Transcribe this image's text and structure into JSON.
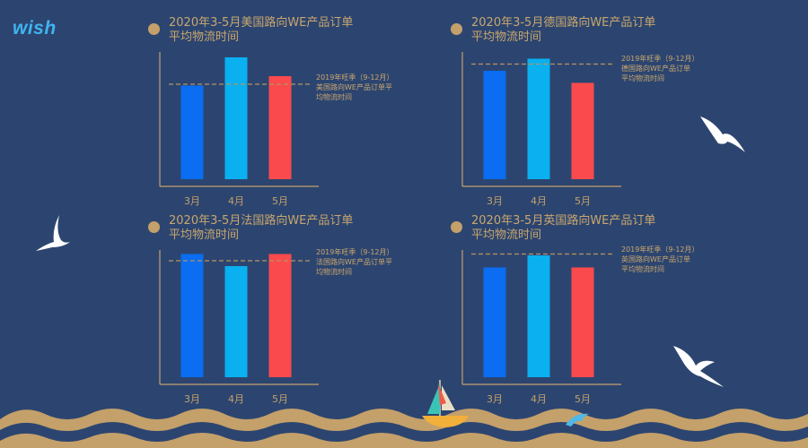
{
  "logo": {
    "text": "wish"
  },
  "colors": {
    "background": "#2c4570",
    "gold": "#c4a06a",
    "bar1": "#0a6df2",
    "bar2": "#0ab0ef",
    "bar3": "#fa4a4d"
  },
  "chart_data": [
    {
      "type": "bar",
      "title_line1": "2020年3-5月美国路向WE产品订单",
      "title_line2": "平均物流时间",
      "categories": [
        "3月",
        "4月",
        "5月"
      ],
      "values": [
        7.5,
        9.6,
        8.2
      ],
      "ylim": [
        0,
        10
      ],
      "reference": {
        "value": 7.6,
        "label_lines": [
          "2019年旺季（9-12月）",
          "美国路向WE产品订单平",
          "均物流时间"
        ]
      }
    },
    {
      "type": "bar",
      "title_line1": "2020年3-5月德国路向WE产品订单",
      "title_line2": "平均物流时间",
      "categories": [
        "3月",
        "4月",
        "5月"
      ],
      "values": [
        8.6,
        9.5,
        7.7
      ],
      "ylim": [
        0,
        10
      ],
      "reference": {
        "value": 9.1,
        "label_lines": [
          "2019年旺季（9-12月）",
          "德国路向WE产品订单",
          "平均物流时间"
        ]
      }
    },
    {
      "type": "bar",
      "title_line1": "2020年3-5月法国路向WE产品订单",
      "title_line2": "平均物流时间",
      "categories": [
        "3月",
        "4月",
        "5月"
      ],
      "values": [
        9.7,
        8.8,
        9.7
      ],
      "ylim": [
        0,
        10
      ],
      "reference": {
        "value": 9.2,
        "label_lines": [
          "2019年旺季（9-12月）",
          "法国路向WE产品订单平",
          "均物流时间"
        ]
      }
    },
    {
      "type": "bar",
      "title_line1": "2020年3-5月英国路向WE产品订单",
      "title_line2": "平均物流时间",
      "categories": [
        "3月",
        "4月",
        "5月"
      ],
      "values": [
        8.7,
        9.6,
        8.7
      ],
      "ylim": [
        0,
        10
      ],
      "reference": {
        "value": 9.7,
        "label_lines": [
          "2019年旺季（9-12月）",
          "英国路向WE产品订单",
          "平均物流时间"
        ]
      }
    }
  ]
}
